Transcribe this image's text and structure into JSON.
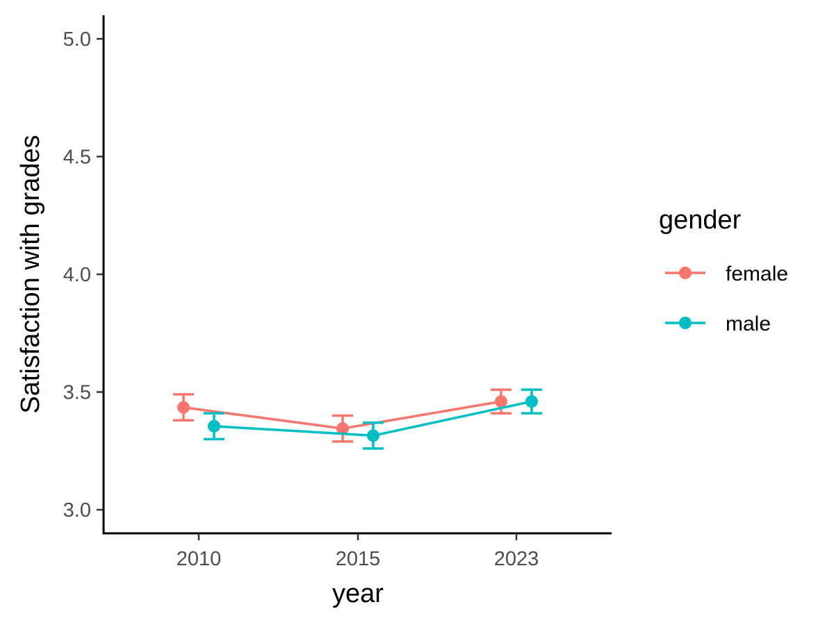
{
  "chart_data": {
    "type": "line",
    "categories": [
      "2010",
      "2015",
      "2023"
    ],
    "xlabel": "year",
    "ylabel": "Satisfaction with grades",
    "ylim": [
      2.9,
      5.1
    ],
    "yticks": [
      "3.0",
      "3.5",
      "4.0",
      "4.5",
      "5.0"
    ],
    "grid": false,
    "legend": {
      "title": "gender",
      "placement": "right"
    },
    "series": [
      {
        "name": "female",
        "color": "#F8766D",
        "values": [
          3.435,
          3.345,
          3.46
        ],
        "error_low": [
          3.38,
          3.29,
          3.41
        ],
        "error_high": [
          3.49,
          3.4,
          3.51
        ]
      },
      {
        "name": "male",
        "color": "#00BFC4",
        "values": [
          3.355,
          3.315,
          3.46
        ],
        "error_low": [
          3.3,
          3.26,
          3.41
        ],
        "error_high": [
          3.41,
          3.37,
          3.51
        ]
      }
    ]
  }
}
